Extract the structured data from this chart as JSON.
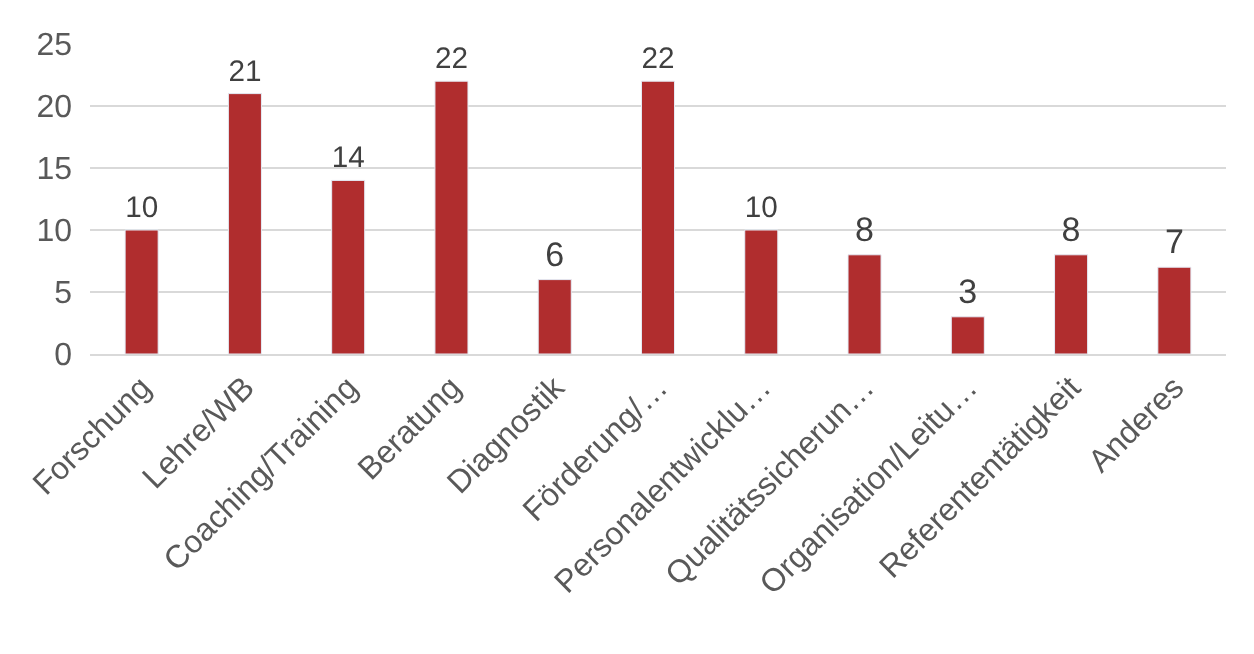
{
  "chart_data": {
    "type": "bar",
    "categories": [
      "Forschung",
      "Lehre/WB",
      "Coaching/Training",
      "Beratung",
      "Diagnostik",
      "Förderung/…",
      "Personalentwicklu…",
      "Qualitätssicherun…",
      "Organisation/Leitu…",
      "Referententätigkeit",
      "Anderes"
    ],
    "values": [
      10,
      21,
      14,
      22,
      6,
      22,
      10,
      8,
      3,
      8,
      7
    ],
    "color": "#b02d2e",
    "ylim": [
      0,
      25
    ],
    "yticks": [
      0,
      5,
      10,
      15,
      20,
      25
    ],
    "grid": "y",
    "data_labels": true
  }
}
